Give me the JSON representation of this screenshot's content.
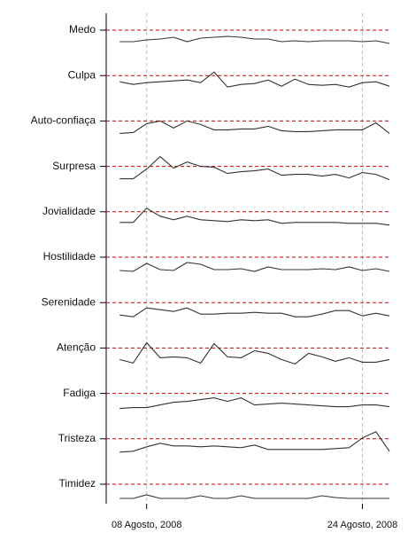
{
  "chart_data": {
    "type": "line",
    "x": [
      "2008-08-06",
      "2008-08-07",
      "2008-08-08",
      "2008-08-09",
      "2008-08-10",
      "2008-08-11",
      "2008-08-12",
      "2008-08-13",
      "2008-08-14",
      "2008-08-15",
      "2008-08-16",
      "2008-08-17",
      "2008-08-18",
      "2008-08-19",
      "2008-08-20",
      "2008-08-21",
      "2008-08-22",
      "2008-08-23",
      "2008-08-24",
      "2008-08-25",
      "2008-08-26"
    ],
    "xlim": [
      "2008-08-05",
      "2008-08-26"
    ],
    "xticks": [
      {
        "value": "2008-08-08",
        "label": "08 Agosto, 2008"
      },
      {
        "value": "2008-08-24",
        "label": "24 Agosto, 2008"
      }
    ],
    "ylim": [
      0,
      7
    ],
    "ref_value": 5,
    "ref_color": "#cc0000",
    "series": [
      {
        "name": "Medo",
        "color": "#333333",
        "values": [
          3.7,
          3.7,
          3.9,
          4.0,
          4.2,
          3.7,
          4.1,
          4.2,
          4.3,
          4.2,
          4.0,
          4.0,
          3.7,
          3.8,
          3.7,
          3.8,
          3.8,
          3.8,
          3.7,
          3.8,
          3.5
        ]
      },
      {
        "name": "Culpa",
        "color": "#333333",
        "values": [
          4.3,
          4.0,
          4.2,
          4.3,
          4.4,
          4.5,
          4.2,
          5.4,
          3.7,
          4.0,
          4.1,
          4.5,
          3.8,
          4.6,
          4.0,
          3.9,
          4.0,
          3.7,
          4.2,
          4.3,
          3.8
        ]
      },
      {
        "name": "Auto-confiaça",
        "color": "#333333",
        "values": [
          3.6,
          3.7,
          4.7,
          5.0,
          4.2,
          5.0,
          4.6,
          4.0,
          4.0,
          4.1,
          4.1,
          4.4,
          3.9,
          3.8,
          3.8,
          3.9,
          4.0,
          4.0,
          4.0,
          4.8,
          3.6
        ]
      },
      {
        "name": "Surpresa",
        "color": "#333333",
        "values": [
          3.6,
          3.6,
          4.7,
          6.1,
          4.8,
          5.5,
          5.0,
          4.9,
          4.2,
          4.4,
          4.5,
          4.7,
          4.0,
          4.1,
          4.1,
          3.9,
          4.1,
          3.7,
          4.3,
          4.1,
          3.5
        ]
      },
      {
        "name": "Jovialidade",
        "color": "#333333",
        "values": [
          3.8,
          3.8,
          5.4,
          4.5,
          4.1,
          4.5,
          4.1,
          4.0,
          3.9,
          4.1,
          4.0,
          4.1,
          3.7,
          3.8,
          3.8,
          3.8,
          3.8,
          3.7,
          3.7,
          3.7,
          3.5
        ]
      },
      {
        "name": "Hostilidade",
        "color": "#333333",
        "values": [
          3.5,
          3.4,
          4.3,
          3.6,
          3.5,
          4.4,
          4.2,
          3.6,
          3.6,
          3.7,
          3.4,
          3.9,
          3.6,
          3.6,
          3.6,
          3.7,
          3.6,
          3.9,
          3.5,
          3.7,
          3.4
        ]
      },
      {
        "name": "Serenidade",
        "color": "#333333",
        "values": [
          3.6,
          3.4,
          4.4,
          4.2,
          4.0,
          4.4,
          3.7,
          3.7,
          3.8,
          3.8,
          3.9,
          3.8,
          3.8,
          3.4,
          3.4,
          3.7,
          4.1,
          4.1,
          3.5,
          3.8,
          3.5
        ]
      },
      {
        "name": "Atenção",
        "color": "#333333",
        "values": [
          3.7,
          3.3,
          5.6,
          3.9,
          4.0,
          3.9,
          3.3,
          5.5,
          4.0,
          3.9,
          4.7,
          4.4,
          3.7,
          3.2,
          4.4,
          4.0,
          3.5,
          3.9,
          3.4,
          3.4,
          3.7
        ]
      },
      {
        "name": "Fadiga",
        "color": "#333333",
        "values": [
          3.3,
          3.4,
          3.4,
          3.7,
          4.0,
          4.1,
          4.3,
          4.5,
          4.1,
          4.5,
          3.7,
          3.8,
          3.9,
          3.8,
          3.7,
          3.6,
          3.5,
          3.5,
          3.7,
          3.7,
          3.5
        ]
      },
      {
        "name": "Tristeza",
        "color": "#333333",
        "values": [
          3.5,
          3.6,
          4.1,
          4.5,
          4.2,
          4.2,
          4.1,
          4.2,
          4.1,
          4.0,
          4.3,
          3.8,
          3.8,
          3.8,
          3.8,
          3.8,
          3.9,
          4.0,
          5.1,
          5.8,
          3.6
        ]
      },
      {
        "name": "Timidez",
        "color": "#333333",
        "values": [
          3.4,
          3.4,
          3.8,
          3.4,
          3.4,
          3.4,
          3.7,
          3.4,
          3.4,
          3.7,
          3.4,
          3.4,
          3.4,
          3.4,
          3.4,
          3.7,
          3.5,
          3.4,
          3.4,
          3.4,
          3.4
        ]
      }
    ]
  }
}
